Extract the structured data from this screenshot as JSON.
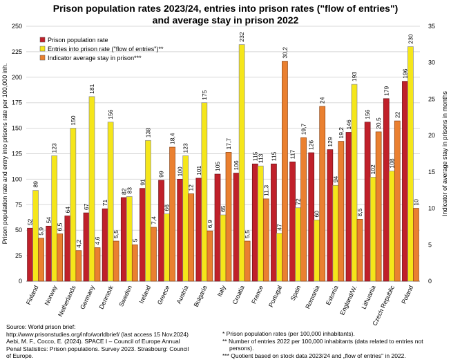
{
  "title_line1": "Prison population rates 2023/24, entries into prison rates (\"flow of entries\")",
  "title_line2": "and average stay in prison 2022",
  "chart_data": {
    "type": "bar",
    "categories": [
      "Finland",
      "Norway",
      "Netherlands",
      "Germany",
      "Denmark",
      "Sweden",
      "Ireland",
      "Greece",
      "Austria",
      "Bulgaria",
      "Italy",
      "Croatia",
      "France",
      "Portugal",
      "Spain",
      "Romania",
      "Estonia",
      "England/W.",
      "Lithuania",
      "Czech Republic",
      "Poland"
    ],
    "series": [
      {
        "name": "Prison population rate",
        "axis": "left",
        "color": "#c0202a",
        "values": [
          52,
          54,
          64,
          67,
          71,
          82,
          91,
          99,
          100,
          101,
          105,
          106,
          115,
          115,
          117,
          126,
          129,
          146,
          156,
          179,
          196
        ]
      },
      {
        "name": "Entries into prison rate (\"flow of entries\")**",
        "axis": "left",
        "color": "#f5e61a",
        "values": [
          89,
          123,
          150,
          181,
          156,
          83,
          138,
          66,
          123,
          175,
          65,
          232,
          113,
          47,
          72,
          60,
          94,
          193,
          102,
          108,
          230
        ]
      },
      {
        "name": "Indicator average stay in prison***",
        "axis": "right",
        "color": "#ea8030",
        "values": [
          5.9,
          6.5,
          4.2,
          4.6,
          5.5,
          5,
          7.4,
          18.4,
          12,
          6.9,
          17.7,
          5.5,
          11.3,
          30.2,
          19.7,
          24,
          19.2,
          8.5,
          20.5,
          22,
          10
        ]
      }
    ],
    "ylabel": "Prison population rate and entry into prisons rate per 100,000 inh.",
    "ylabel_right": "Indicator of average stay in prisons in months",
    "ylim": [
      0,
      250
    ],
    "yticks": [
      0,
      25,
      50,
      75,
      100,
      125,
      150,
      175,
      200,
      225,
      250
    ],
    "ylim_right": [
      0,
      35
    ],
    "yticks_right": [
      0,
      5,
      10,
      15,
      20,
      25,
      30,
      35
    ],
    "grid": true,
    "legend": "top-left"
  },
  "source": [
    "Source: World prison brief:",
    "http://www.prisonstudies.org/info/worldbrief/ (last access 15 Nov.2024)",
    "Aebi, M. F., Cocco, E. (2024). SPACE I – Council of Europe Annual",
    "Penal Statistics: Prison populations. Survey 2023. Strasbourg: Council",
    "of Europe."
  ],
  "notes": [
    "* Prison population rates (per 100,000 inhabitants).",
    "** Number of entries 2022 per 100,000 inhabitants (data related to entries not",
    "persons).",
    "*** Quotient based on stock data 2023/24 and „flow of entries\" in 2022."
  ]
}
